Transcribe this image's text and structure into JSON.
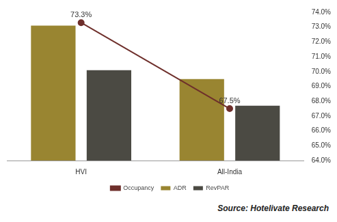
{
  "chart_data": {
    "type": "bar",
    "categories": [
      "HVI",
      "All-India"
    ],
    "series": [
      {
        "name": "ADR",
        "color": "#998531",
        "values": [
          73.1,
          69.5
        ]
      },
      {
        "name": "RevPAR",
        "color": "#4b4a43",
        "values": [
          70.1,
          67.7
        ]
      },
      {
        "name": "Occupancy",
        "type": "line",
        "marker": "circle",
        "color": "#6e2f2b",
        "values": [
          73.3,
          67.5
        ],
        "data_labels": true,
        "value_labels": [
          "73.3%",
          "67.5%"
        ]
      }
    ],
    "ylim": [
      64,
      74
    ],
    "yticks": [
      {
        "value": 64,
        "label": "64.0%"
      },
      {
        "value": 65,
        "label": "65.0%"
      },
      {
        "value": 66,
        "label": "66.0%"
      },
      {
        "value": 67,
        "label": "67.0%"
      },
      {
        "value": 68,
        "label": "68.0%"
      },
      {
        "value": 69,
        "label": "69.0%"
      },
      {
        "value": 70,
        "label": "70.0%"
      },
      {
        "value": 71,
        "label": "71.0%"
      },
      {
        "value": 72,
        "label": "72.0%"
      },
      {
        "value": 73,
        "label": "73.0%"
      },
      {
        "value": 74,
        "label": "74.0%"
      }
    ],
    "grid": false,
    "legend": "bottom",
    "annotations": [
      "Source: Hotelivate Research"
    ]
  }
}
